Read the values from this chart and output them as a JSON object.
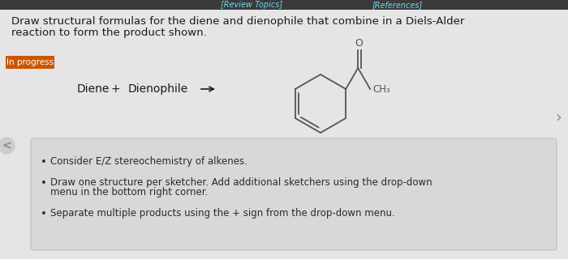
{
  "bg_color": "#e5e5e5",
  "content_bg": "#ebebeb",
  "header_bg": "#3a3a3a",
  "header_links": [
    "[Review Topics]",
    "[References]"
  ],
  "header_link_color": "#6dd8f0",
  "title_text_line1": "Draw structural formulas for the diene and dienophile that combine in a Diels-Alder",
  "title_text_line2": "reaction to form the product shown.",
  "title_color": "#1a1a1a",
  "title_fontsize": 9.5,
  "badge_text": "In progress",
  "badge_bg": "#cc5500",
  "badge_text_color": "#ffffff",
  "badge_fontsize": 7.5,
  "diene_label": "Diene",
  "plus_label": "+",
  "dienophile_label": "Dienophile",
  "equation_fontsize": 10,
  "bullet_bg": "#d8d8d8",
  "bullet_border": "#c0c0c0",
  "bullets": [
    "Consider E/Z stereochemistry of alkenes.",
    "Draw one structure per sketcher. Add additional sketchers using the drop-down\n    menu in the bottom right corner.",
    "Separate multiple products using the + sign from the drop-down menu."
  ],
  "bullet_fontsize": 8.5,
  "bullet_color": "#2a2a2a",
  "molecule_color": "#555555",
  "nav_arrow_color": "#888888"
}
